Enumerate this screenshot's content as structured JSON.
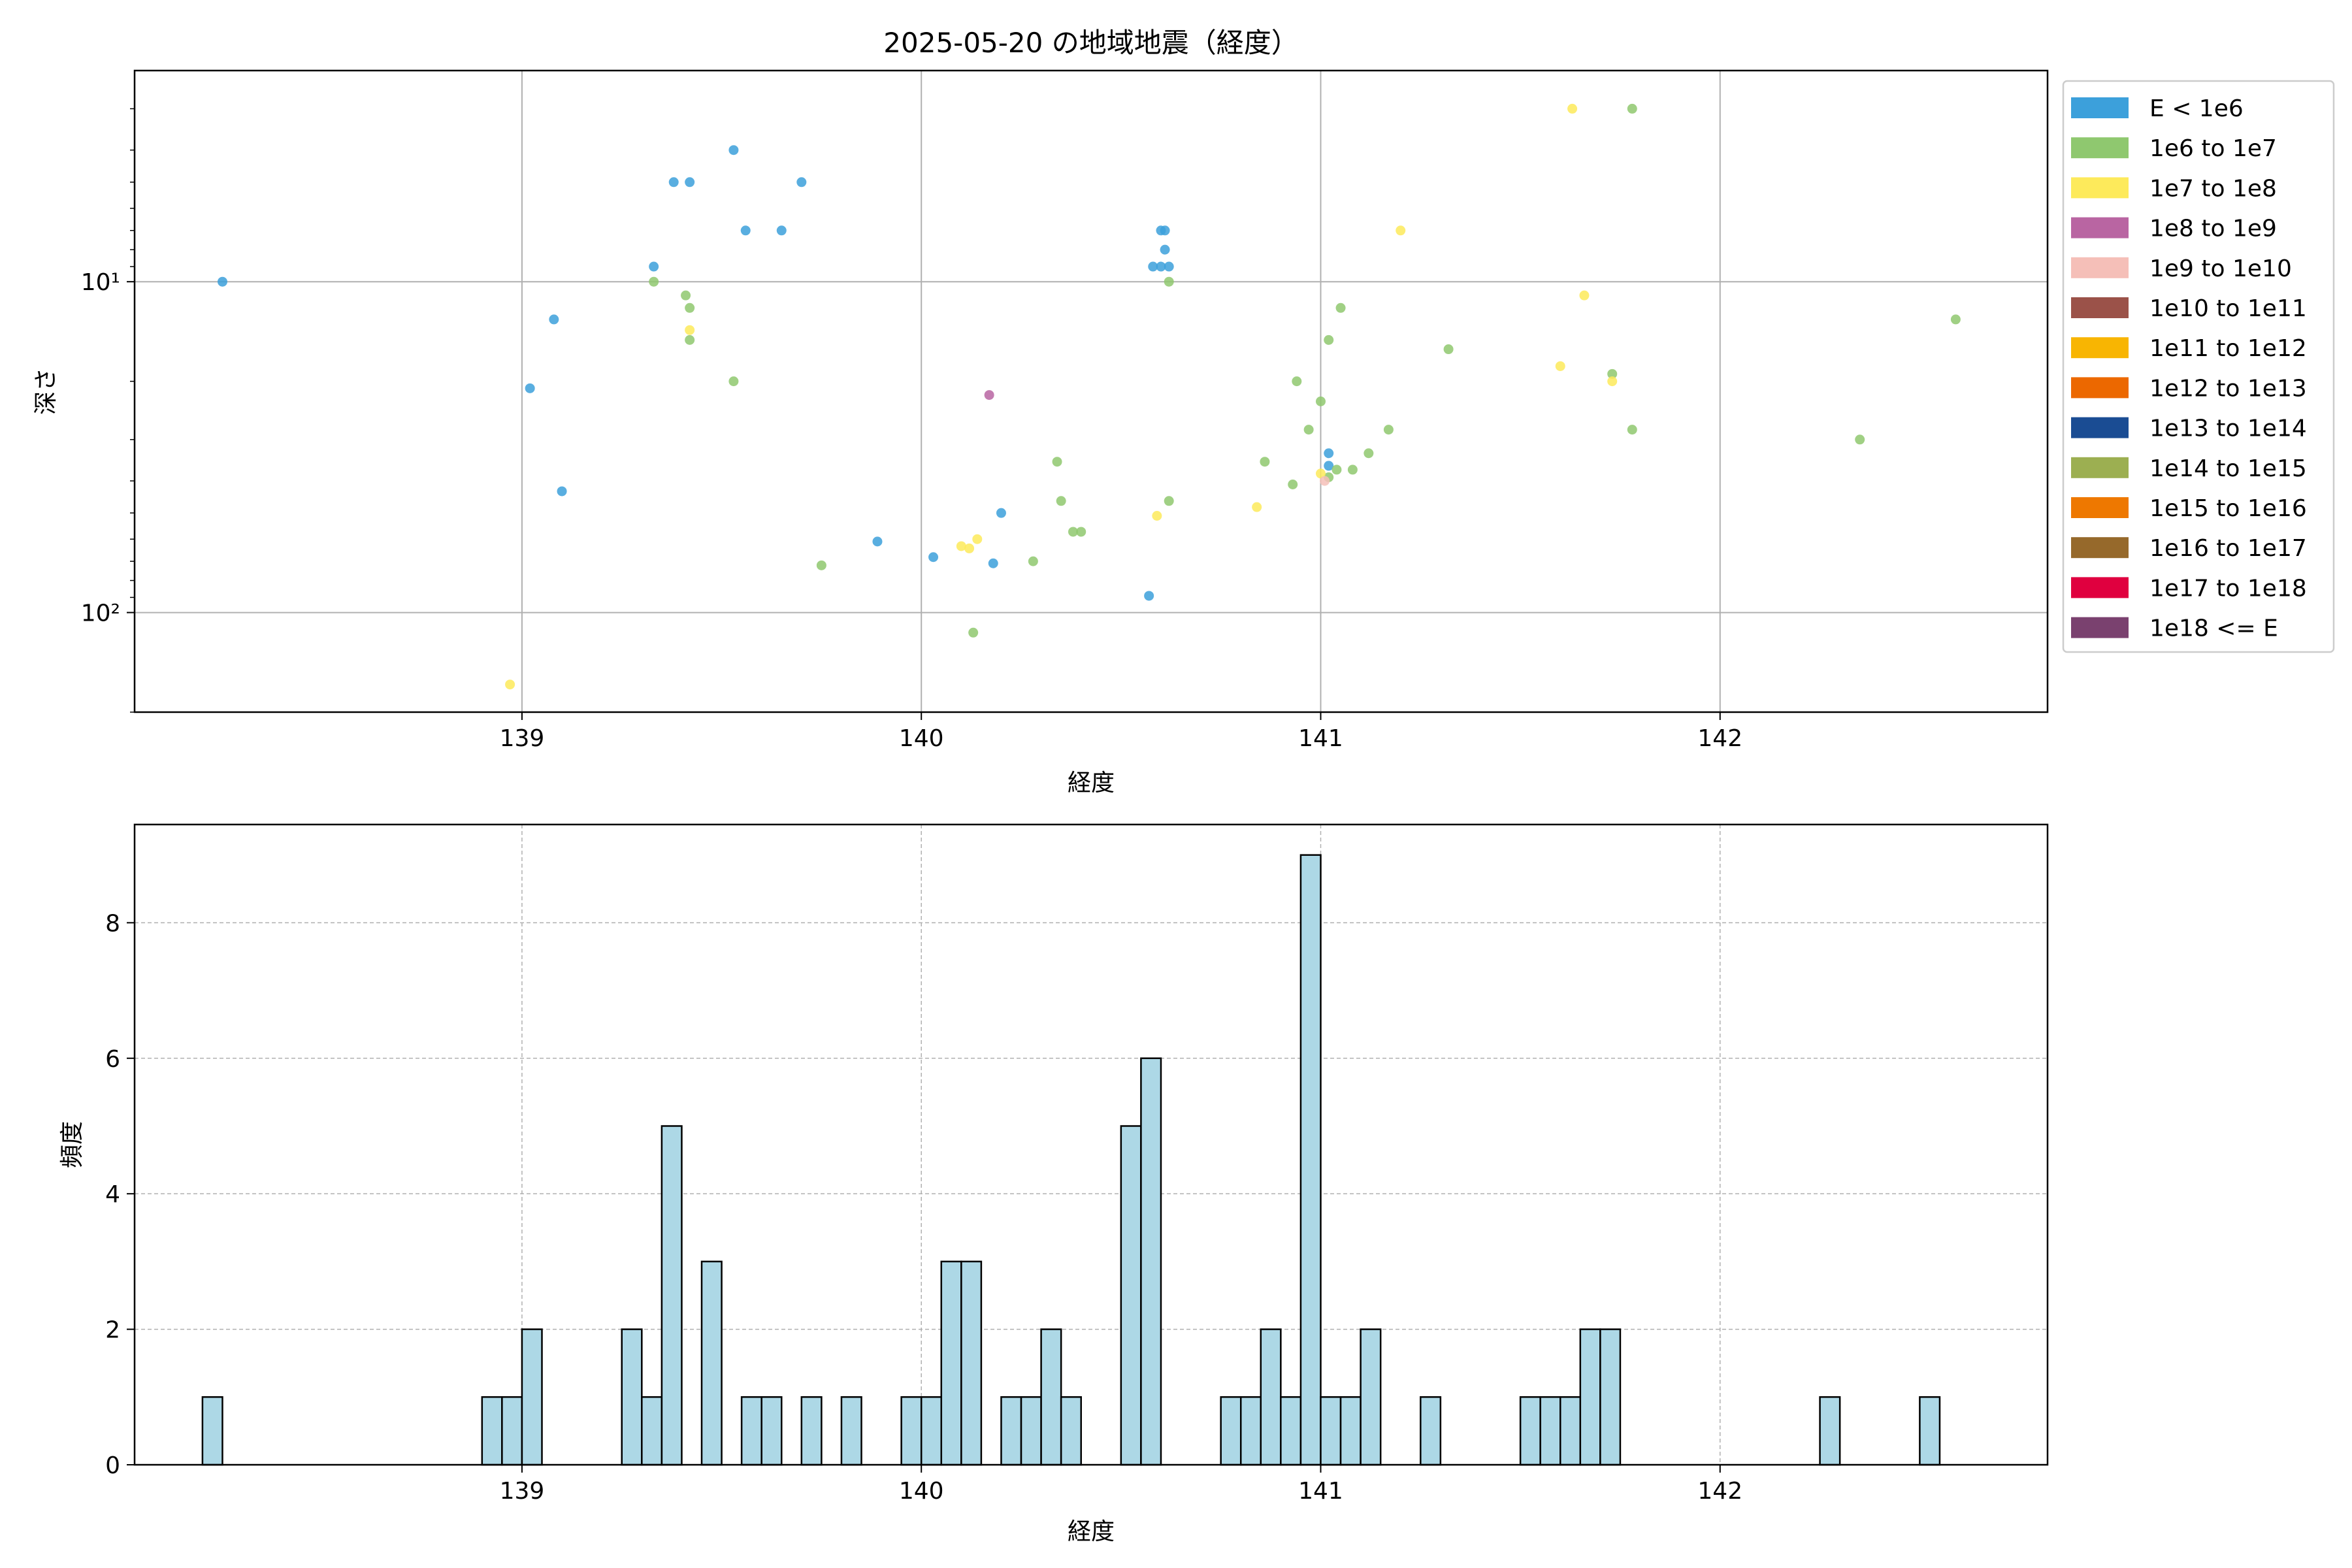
{
  "chart_data": [
    {
      "type": "scatter",
      "title": "2025-05-20 の地域地震（経度）",
      "xlabel": "経度",
      "ylabel": "深さ",
      "xlim": [
        138.03,
        142.82
      ],
      "yscale": "log",
      "ylim": [
        200,
        2.3
      ],
      "y_inverted": true,
      "xticks": [
        139,
        140,
        141,
        142
      ],
      "xtick_labels": [
        "139",
        "140",
        "141",
        "142"
      ],
      "yticks": [
        10,
        100
      ],
      "ytick_labels": [
        "10¹",
        "10²"
      ],
      "grid": true,
      "legend": {
        "position": "outside-right",
        "entries": [
          {
            "label": "E < 1e6",
            "color": "#3ca0db"
          },
          {
            "label": "1e6 to 1e7",
            "color": "#8fc86f"
          },
          {
            "label": "1e7 to 1e8",
            "color": "#fdea5b"
          },
          {
            "label": "1e8 to 1e9",
            "color": "#b965a2"
          },
          {
            "label": "1e9 to 1e10",
            "color": "#f5bfb8"
          },
          {
            "label": "1e10 to 1e11",
            "color": "#9b5249"
          },
          {
            "label": "1e11 to 1e12",
            "color": "#f8b502"
          },
          {
            "label": "1e12 to 1e13",
            "color": "#ec6800"
          },
          {
            "label": "1e13 to 1e14",
            "color": "#1a4c93"
          },
          {
            "label": "1e14 to 1e15",
            "color": "#9caf51"
          },
          {
            "label": "1e15 to 1e16",
            "color": "#ee7800"
          },
          {
            "label": "1e16 to 1e17",
            "color": "#96692b"
          },
          {
            "label": "1e17 to 1e18",
            "color": "#e0003f"
          },
          {
            "label": "1e18 <= E",
            "color": "#7a416f"
          }
        ]
      },
      "series": [
        {
          "name": "E < 1e6",
          "points": [
            [
              138.25,
              10
            ],
            [
              139.02,
              21
            ],
            [
              139.08,
              13
            ],
            [
              139.1,
              43
            ],
            [
              139.33,
              9
            ],
            [
              139.38,
              5
            ],
            [
              139.42,
              5
            ],
            [
              139.53,
              4
            ],
            [
              139.56,
              7
            ],
            [
              139.65,
              7
            ],
            [
              139.7,
              5
            ],
            [
              139.89,
              61
            ],
            [
              140.03,
              68
            ],
            [
              140.18,
              71
            ],
            [
              140.2,
              50
            ],
            [
              140.57,
              89
            ],
            [
              140.58,
              9
            ],
            [
              140.6,
              9
            ],
            [
              140.6,
              7
            ],
            [
              140.61,
              7
            ],
            [
              140.61,
              8
            ],
            [
              140.62,
              9
            ],
            [
              141.02,
              33
            ],
            [
              141.02,
              36
            ]
          ]
        },
        {
          "name": "1e6 to 1e7",
          "points": [
            [
              139.33,
              10
            ],
            [
              139.41,
              11
            ],
            [
              139.42,
              15
            ],
            [
              139.42,
              12
            ],
            [
              139.53,
              20
            ],
            [
              139.75,
              72
            ],
            [
              140.13,
              115
            ],
            [
              140.28,
              70
            ],
            [
              140.34,
              35
            ],
            [
              140.35,
              46
            ],
            [
              140.38,
              57
            ],
            [
              140.4,
              57
            ],
            [
              140.62,
              10
            ],
            [
              140.62,
              46
            ],
            [
              140.86,
              35
            ],
            [
              140.93,
              41
            ],
            [
              140.94,
              20
            ],
            [
              140.97,
              28
            ],
            [
              141.0,
              23
            ],
            [
              141.02,
              15
            ],
            [
              141.02,
              39
            ],
            [
              141.04,
              37
            ],
            [
              141.05,
              12
            ],
            [
              141.08,
              37
            ],
            [
              141.12,
              33
            ],
            [
              141.17,
              28
            ],
            [
              141.32,
              16
            ],
            [
              141.73,
              19
            ],
            [
              141.78,
              3
            ],
            [
              141.78,
              28
            ],
            [
              142.35,
              30
            ],
            [
              142.59,
              13
            ]
          ]
        },
        {
          "name": "1e7 to 1e8",
          "points": [
            [
              138.97,
              165
            ],
            [
              139.42,
              14
            ],
            [
              140.1,
              63
            ],
            [
              140.12,
              64
            ],
            [
              140.14,
              60
            ],
            [
              140.59,
              51
            ],
            [
              140.84,
              48
            ],
            [
              141.0,
              38
            ],
            [
              141.2,
              7
            ],
            [
              141.6,
              18
            ],
            [
              141.63,
              3
            ],
            [
              141.66,
              11
            ],
            [
              141.73,
              20
            ]
          ]
        },
        {
          "name": "1e8 to 1e9",
          "points": [
            [
              140.17,
              22
            ]
          ]
        },
        {
          "name": "1e9 to 1e10",
          "points": [
            [
              141.01,
              40
            ]
          ]
        }
      ]
    },
    {
      "type": "bar",
      "subtype": "histogram",
      "xlabel": "経度",
      "ylabel": "頻度",
      "xlim": [
        138.03,
        142.82
      ],
      "ylim": [
        0,
        9.45
      ],
      "xticks": [
        139,
        140,
        141,
        142
      ],
      "xtick_labels": [
        "139",
        "140",
        "141",
        "142"
      ],
      "yticks": [
        0,
        2,
        4,
        6,
        8
      ],
      "ytick_labels": [
        "0",
        "2",
        "4",
        "6",
        "8"
      ],
      "grid": true,
      "bar_color": "#add8e6",
      "edge_color": "#000000",
      "bin_width": 0.05,
      "bins": [
        [
          138.225,
          1
        ],
        [
          138.925,
          1
        ],
        [
          138.975,
          1
        ],
        [
          139.025,
          2
        ],
        [
          139.275,
          2
        ],
        [
          139.325,
          1
        ],
        [
          139.375,
          5
        ],
        [
          139.475,
          3
        ],
        [
          139.575,
          1
        ],
        [
          139.625,
          1
        ],
        [
          139.725,
          1
        ],
        [
          139.825,
          1
        ],
        [
          139.975,
          1
        ],
        [
          140.025,
          1
        ],
        [
          140.075,
          3
        ],
        [
          140.125,
          3
        ],
        [
          140.225,
          1
        ],
        [
          140.275,
          1
        ],
        [
          140.325,
          2
        ],
        [
          140.375,
          1
        ],
        [
          140.525,
          5
        ],
        [
          140.575,
          6
        ],
        [
          140.775,
          1
        ],
        [
          140.825,
          1
        ],
        [
          140.875,
          2
        ],
        [
          140.925,
          1
        ],
        [
          140.975,
          9
        ],
        [
          141.025,
          1
        ],
        [
          141.075,
          1
        ],
        [
          141.125,
          2
        ],
        [
          141.275,
          1
        ],
        [
          141.525,
          1
        ],
        [
          141.575,
          1
        ],
        [
          141.625,
          1
        ],
        [
          141.675,
          2
        ],
        [
          141.725,
          2
        ],
        [
          142.275,
          1
        ],
        [
          142.525,
          1
        ]
      ]
    }
  ]
}
